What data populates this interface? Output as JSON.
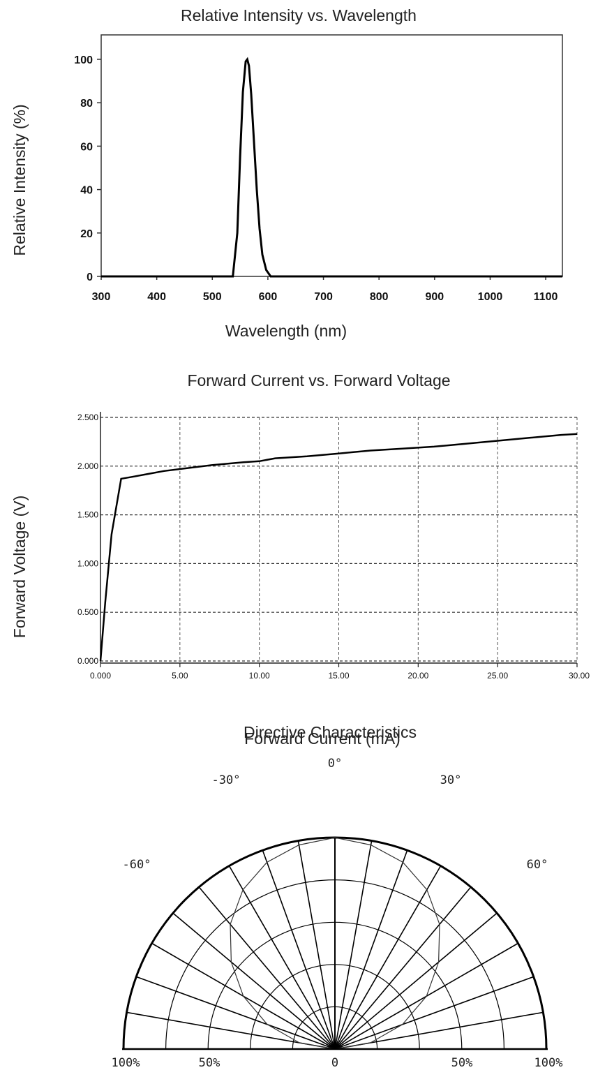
{
  "chart_data": [
    {
      "type": "line",
      "title": "Relative Intensity vs. Wavelength",
      "xlabel": "Wavelength (nm)",
      "ylabel": "Relative Intensity (%)",
      "xlim": [
        300,
        1130
      ],
      "ylim": [
        0,
        110
      ],
      "xticks": [
        300,
        400,
        500,
        600,
        700,
        800,
        900,
        1000,
        1100
      ],
      "yticks": [
        0,
        20,
        40,
        60,
        80,
        100
      ],
      "grid": false,
      "x": [
        300,
        520,
        537,
        545,
        550,
        555,
        560,
        563,
        566,
        570,
        575,
        580,
        585,
        590,
        597,
        605,
        620,
        1130
      ],
      "y": [
        0,
        0,
        0,
        20,
        55,
        85,
        99,
        100,
        97,
        84,
        62,
        40,
        22,
        10,
        3,
        0,
        0,
        0
      ]
    },
    {
      "type": "line",
      "title": "Forward Current vs. Forward Voltage",
      "xlabel": "Forward Current (mA)",
      "ylabel": "Forward Voltage (V)",
      "xlim": [
        0,
        30
      ],
      "ylim": [
        0,
        2.5
      ],
      "xticks": [
        "0.000",
        "5.00",
        "10.00",
        "15.00",
        "20.00",
        "25.00",
        "30.00"
      ],
      "yticks": [
        "0.000",
        "0.500",
        "1.000",
        "1.500",
        "2.000",
        "2.500"
      ],
      "grid": true,
      "x": [
        0,
        0.3,
        0.7,
        1.3,
        2,
        3,
        4,
        5,
        7,
        9,
        10,
        11,
        13,
        15,
        17,
        19,
        21,
        23,
        25,
        27,
        29,
        30
      ],
      "y": [
        0,
        0.6,
        1.3,
        1.87,
        1.89,
        1.92,
        1.95,
        1.97,
        2.01,
        2.04,
        2.05,
        2.08,
        2.1,
        2.13,
        2.16,
        2.18,
        2.2,
        2.23,
        2.26,
        2.29,
        2.32,
        2.33
      ]
    },
    {
      "type": "polar",
      "title": "Directive Characteristics",
      "angle_labels": [
        "0°",
        "30°",
        "60°",
        "-30°",
        "-60°"
      ],
      "radial_labels": [
        "100%",
        "50%",
        "0",
        "50%",
        "100%"
      ],
      "radial_rings": [
        0.2,
        0.4,
        0.6,
        0.8,
        1.0
      ],
      "spoke_step_deg": 10,
      "pattern": {
        "angles_deg": [
          -90,
          -80,
          -70,
          -60,
          -50,
          -40,
          -30,
          -20,
          -10,
          0,
          10,
          20,
          30,
          40,
          50,
          60,
          70,
          80,
          90
        ],
        "relative_intensity": [
          0,
          0.17,
          0.34,
          0.5,
          0.64,
          0.77,
          0.87,
          0.94,
          0.98,
          1,
          0.98,
          0.94,
          0.87,
          0.77,
          0.64,
          0.5,
          0.34,
          0.17,
          0
        ]
      }
    }
  ]
}
